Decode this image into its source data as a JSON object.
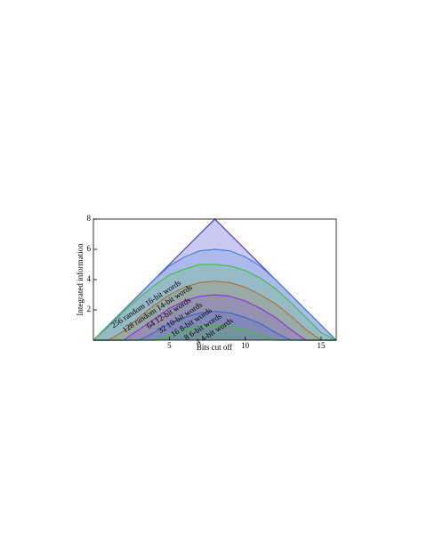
{
  "chart_data": {
    "type": "area",
    "x_label": "Bits cut off",
    "y_label": "Integrated information",
    "x": [
      0,
      1,
      2,
      3,
      4,
      5,
      6,
      7,
      8,
      9,
      10,
      11,
      12,
      13,
      14,
      15,
      16
    ],
    "xlim": [
      0,
      16
    ],
    "xticks": [
      5,
      10,
      15
    ],
    "ylim": [
      0,
      8
    ],
    "yticks": [
      2,
      4,
      6,
      8
    ],
    "series": [
      {
        "name": "256 random 16-bit words",
        "color": "#3c3cd2",
        "values": [
          0,
          1,
          2,
          3,
          4,
          5,
          6,
          7,
          8,
          7,
          6,
          5,
          4,
          3,
          2,
          1,
          0
        ]
      },
      {
        "name": "128 random 14-bit words",
        "color": "#4a7fd0",
        "values": [
          0,
          1,
          2,
          3,
          4,
          4.9,
          5.5,
          5.9,
          6,
          5.9,
          5.5,
          4.9,
          4,
          3,
          2,
          1,
          0
        ]
      },
      {
        "name": "64 12-bit words",
        "color": "#44c044",
        "values": [
          0,
          0.9,
          1.9,
          2.8,
          3.6,
          4.3,
          4.7,
          5,
          5,
          4.9,
          4.6,
          4.1,
          3.4,
          2.5,
          1.5,
          0.5,
          0
        ]
      },
      {
        "name": "32 10-bit words",
        "color": "#a8743a",
        "values": [
          0,
          0,
          0.6,
          1.5,
          2.3,
          3,
          3.5,
          3.8,
          3.9,
          3.8,
          3.5,
          3,
          2.4,
          1.6,
          0.7,
          0,
          0
        ]
      },
      {
        "name": "16 8-bit words",
        "color": "#8a3ad8",
        "values": [
          0,
          0,
          0,
          0.7,
          1.4,
          2.1,
          2.6,
          2.9,
          3,
          2.9,
          2.6,
          2.1,
          1.5,
          0.7,
          0,
          0,
          0
        ]
      },
      {
        "name": "8 6-bit words",
        "color": "#3a6ad0",
        "values": [
          0,
          0,
          0,
          0,
          0.5,
          1.1,
          1.5,
          1.8,
          1.9,
          1.8,
          1.5,
          1.1,
          0.5,
          0,
          0,
          0,
          0
        ]
      },
      {
        "name": "4 4-bit words",
        "color": "#40c040",
        "values": [
          0,
          0,
          0,
          0,
          0,
          0.3,
          0.7,
          0.9,
          1,
          0.9,
          0.7,
          0.3,
          0,
          0,
          0,
          0,
          0
        ]
      }
    ]
  }
}
